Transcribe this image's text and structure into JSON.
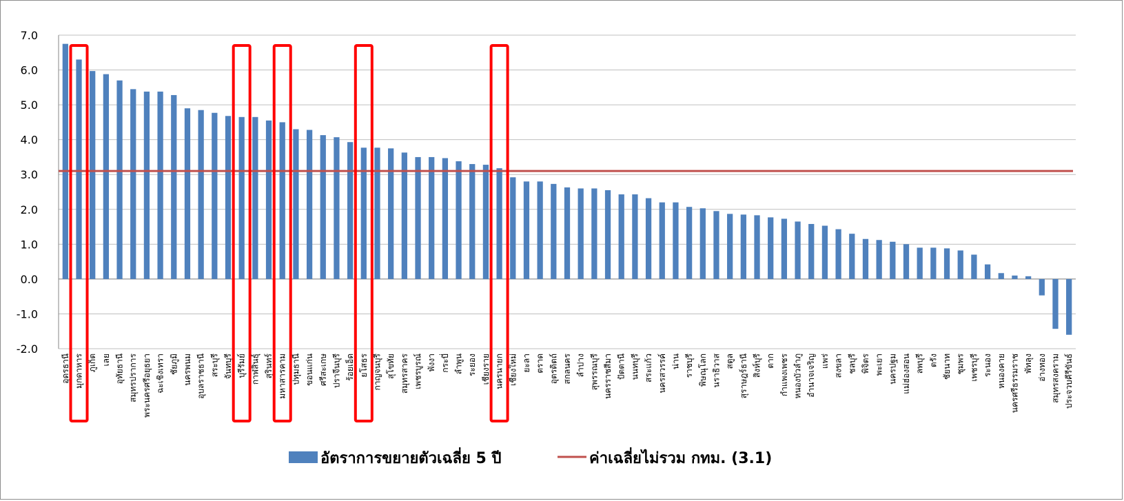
{
  "chart_data": {
    "type": "bar",
    "title": "",
    "xlabel": "",
    "ylabel": "",
    "ylim": [
      -2.0,
      7.0
    ],
    "yticks": [
      "7.0",
      "6.0",
      "5.0",
      "4.0",
      "3.0",
      "2.0",
      "1.0",
      "0.0",
      "-1.0",
      "-2.0"
    ],
    "grid": "horizontal",
    "legend_position": "bottom",
    "categories": [
      "อุดรธานี",
      "มุกดาหาร",
      "ภูเก็ต",
      "เลย",
      "อุทัยธานี",
      "สมุทรปราการ",
      "พระนครศรีอยุธยา",
      "ฉะเชิงเทรา",
      "ชัยภูมิ",
      "นครพนม",
      "อุบลราชธานี",
      "สระบุรี",
      "จันทบุรี",
      "บุรีรัมย์",
      "กาฬสินธุ์",
      "สุรินทร์",
      "มหาสารคาม",
      "ปทุมธานี",
      "ขอนแก่น",
      "ศรีสะเกษ",
      "ปราจีนบุรี",
      "ร้อยเอ็ด",
      "ยโสธร",
      "กาญจนบุรี",
      "สุโขทัย",
      "สมุทรสาคร",
      "เพชรบูรณ์",
      "พังงา",
      "กระบี่",
      "ลำพูน",
      "ระยอง",
      "เชียงราย",
      "นครนายก",
      "เชียงใหม่",
      "ยะลา",
      "ตราด",
      "อุตรดิตถ์",
      "สกลนคร",
      "ลำปาง",
      "สุพรรณบุรี",
      "นครราชสีมา",
      "ปัตตานี",
      "นนทบุรี",
      "สระแก้ว",
      "นครสวรรค์",
      "น่าน",
      "ราชบุรี",
      "พิษณุโลก",
      "นราธิวาส",
      "สตูล",
      "สุราษฎร์ธานี",
      "สิงห์บุรี",
      "ตาก",
      "กำแพงเพชร",
      "หนองบัวลำภู",
      "อำนาจเจริญ",
      "แพร่",
      "สงขลา",
      "ชลบุรี",
      "พิจิตร",
      "พะเยา",
      "นครปฐม",
      "แม่ฮ่องสอน",
      "ลพบุรี",
      "ตรัง",
      "ชัยนาท",
      "ชุมพร",
      "เพชรบุรี",
      "ระนอง",
      "หนองคาย",
      "นครศรีธรรมราช",
      "พัทลุง",
      "อ่างทอง",
      "สมุทรสงคราม",
      "ประจวบคีรีขันธ์"
    ],
    "series": [
      {
        "name": "อัตราการขยายตัวเฉลี่ย 5 ปี",
        "color": "#4f81bd",
        "values": [
          6.75,
          6.3,
          5.97,
          5.88,
          5.7,
          5.45,
          5.38,
          5.38,
          5.28,
          4.9,
          4.85,
          4.77,
          4.68,
          4.65,
          4.65,
          4.55,
          4.5,
          4.3,
          4.28,
          4.13,
          4.07,
          3.93,
          3.77,
          3.77,
          3.75,
          3.63,
          3.5,
          3.5,
          3.47,
          3.38,
          3.3,
          3.28,
          3.18,
          2.92,
          2.8,
          2.8,
          2.73,
          2.63,
          2.6,
          2.6,
          2.55,
          2.43,
          2.43,
          2.32,
          2.2,
          2.2,
          2.07,
          2.03,
          1.95,
          1.87,
          1.85,
          1.83,
          1.77,
          1.73,
          1.65,
          1.58,
          1.53,
          1.43,
          1.3,
          1.15,
          1.12,
          1.07,
          1.0,
          0.9,
          0.9,
          0.88,
          0.82,
          0.7,
          0.42,
          0.17,
          0.1,
          0.08,
          -0.47,
          -1.43,
          -1.6
        ]
      },
      {
        "name": "ค่าเฉลี่ยไม่รวม กทม. (3.1)",
        "color": "#c0504d",
        "type": "line",
        "value": 3.1
      }
    ],
    "highlighted_categories": [
      "มุกดาหาร",
      "บุรีรัมย์",
      "มหาสารคาม",
      "ยโสธร",
      "นครนายก"
    ],
    "highlight_color": "#ff0000"
  }
}
